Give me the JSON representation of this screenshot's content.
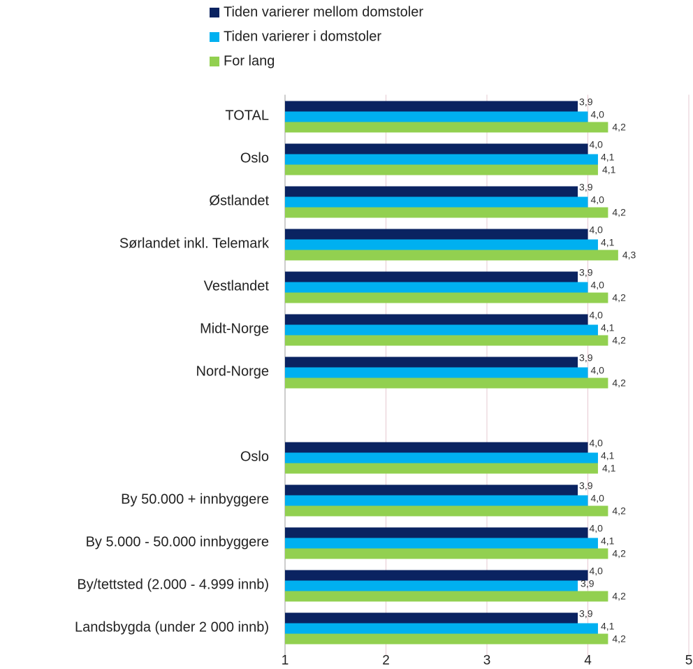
{
  "chart_data": {
    "type": "hbar",
    "categories": [
      "TOTAL",
      "Oslo",
      "Østlandet",
      "Sørlandet inkl. Telemark",
      "Vestlandet",
      "Midt-Norge",
      "Nord-Norge",
      null,
      "Oslo",
      "By 50.000 + innbyggere",
      "By 5.000 - 50.000 innbyggere",
      "By/tettsted (2.000 - 4.999 innb)",
      "Landsbygda (under 2 000 innb)"
    ],
    "series": [
      {
        "name": "Tiden varierer mellom domstoler",
        "color": "#0a2361",
        "values": [
          3.9,
          4.0,
          3.9,
          4.0,
          3.9,
          4.0,
          3.9,
          null,
          4.0,
          3.9,
          4.0,
          4.0,
          3.9
        ],
        "value_labels": [
          "3,9",
          "4,0",
          "3,9",
          "4,0",
          "3,9",
          "4,0",
          "3,9",
          null,
          "4,0",
          "3,9",
          "4,0",
          "4,0",
          "3,9"
        ]
      },
      {
        "name": "Tiden varierer i domstoler",
        "color": "#00b0f0",
        "values": [
          4.0,
          4.1,
          4.0,
          4.1,
          4.0,
          4.1,
          4.0,
          null,
          4.1,
          4.0,
          4.1,
          3.9,
          4.1
        ],
        "value_labels": [
          "4,0",
          "4,1",
          "4,0",
          "4,1",
          "4,0",
          "4,1",
          "4,0",
          null,
          "4,1",
          "4,0",
          "4,1",
          "3,9",
          "4,1"
        ]
      },
      {
        "name": "For lang",
        "color": "#92d050",
        "values": [
          4.2,
          4.1,
          4.2,
          4.3,
          4.2,
          4.2,
          4.2,
          null,
          4.1,
          4.2,
          4.2,
          4.2,
          4.2
        ],
        "value_labels": [
          "4,2",
          "4,1",
          "4,2",
          "4,3",
          "4,2",
          "4,2",
          "4,2",
          null,
          "4,1",
          "4,2",
          "4,2",
          "4,2",
          "4,2"
        ]
      }
    ],
    "xlim": [
      1,
      5
    ],
    "xticks": [
      1,
      2,
      3,
      4,
      5
    ],
    "grid": true,
    "legend": "top"
  }
}
